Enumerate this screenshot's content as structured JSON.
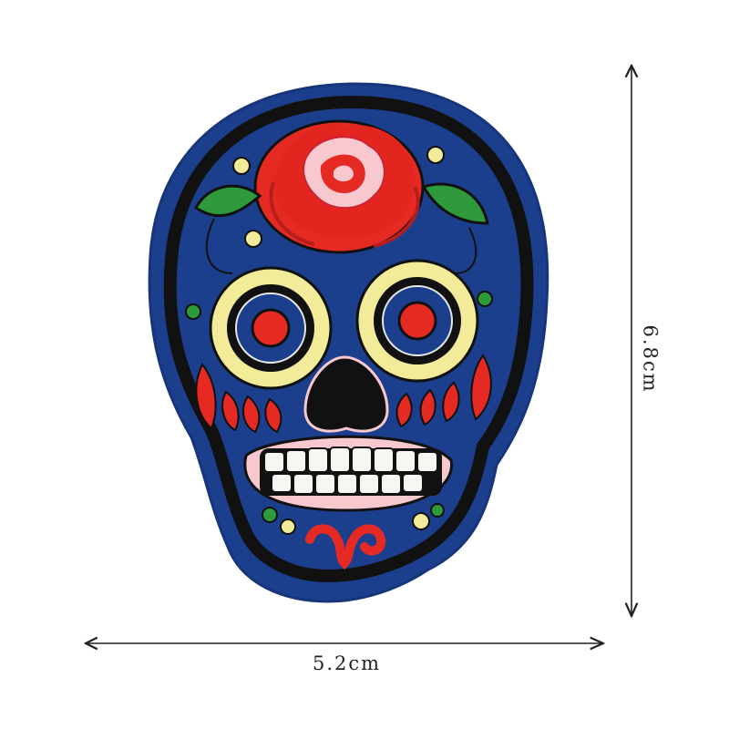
{
  "product": {
    "name": "sugar-skull-embroidered-patch",
    "colors": {
      "felt": "#1b3f8c",
      "outline": "#111111",
      "rose": "#e52a24",
      "rose_highlight": "#f7c9cf",
      "leaf": "#2e9a3c",
      "petals": "#f2ec9a",
      "teeth": "#f7f7f2"
    }
  },
  "dimensions": {
    "width_label": "5.2cm",
    "height_label": "6.8cm"
  }
}
